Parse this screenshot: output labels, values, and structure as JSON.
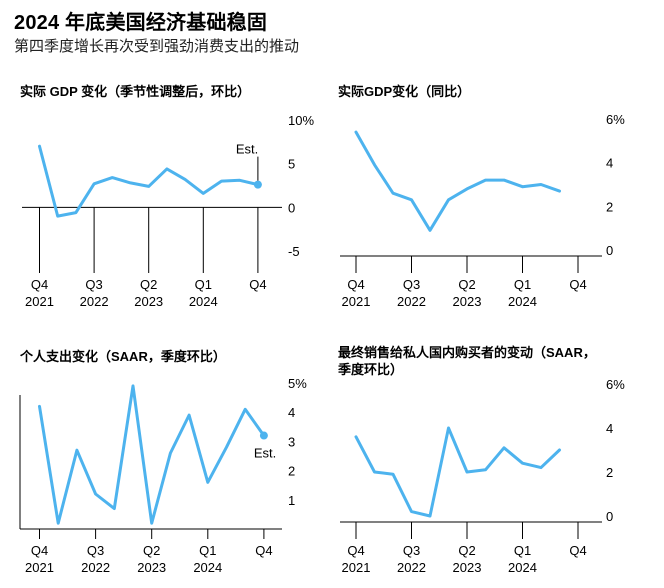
{
  "title": "2024 年底美国经济基础稳固",
  "subtitle": "第四季度增长再次受到强劲消费支出的推动",
  "colors": {
    "line": "#4db3ee",
    "axis": "#000000",
    "text": "#000000"
  },
  "chart_data": [
    {
      "type": "line",
      "title": "实际 GDP 变化（季节性调整后，环比）",
      "x": [
        "Q4 2021",
        "Q1 2022",
        "Q2 2022",
        "Q3 2022",
        "Q4 2022",
        "Q1 2023",
        "Q2 2023",
        "Q3 2023",
        "Q4 2023",
        "Q1 2024",
        "Q2 2024",
        "Q3 2024",
        "Q4 2024"
      ],
      "series": [
        {
          "name": "实际 GDP 变化",
          "values": [
            7.0,
            -1.0,
            -0.6,
            2.7,
            3.4,
            2.8,
            2.4,
            4.4,
            3.2,
            1.6,
            3.0,
            3.1,
            2.6
          ]
        }
      ],
      "ylim": [
        -5,
        10
      ],
      "yticks": [
        "10%",
        "5",
        "0",
        "-5"
      ],
      "ytick_values": [
        10,
        5,
        0,
        -5
      ],
      "xtick_top": [
        "Q4",
        "Q3",
        "Q2",
        "Q1",
        "Q4"
      ],
      "xtick_bottom": [
        "2021",
        "2022",
        "2023",
        "2024",
        ""
      ],
      "annotation": "Est."
    },
    {
      "type": "line",
      "title": "实际GDP变化（同比）",
      "x": [
        "Q4 2021",
        "Q1 2022",
        "Q2 2022",
        "Q3 2022",
        "Q4 2022",
        "Q1 2023",
        "Q2 2023",
        "Q3 2023",
        "Q4 2023",
        "Q1 2024",
        "Q2 2024",
        "Q3 2024"
      ],
      "series": [
        {
          "name": "实际GDP变化（同比）",
          "values": [
            5.4,
            3.9,
            2.6,
            2.3,
            0.9,
            2.3,
            2.8,
            3.2,
            3.2,
            2.9,
            3.0,
            2.7
          ]
        }
      ],
      "ylim": [
        0,
        6
      ],
      "yticks": [
        "6%",
        "4",
        "2",
        "0"
      ],
      "ytick_values": [
        6,
        4,
        2,
        0
      ],
      "xtick_top": [
        "Q4",
        "Q3",
        "Q2",
        "Q1",
        "Q4"
      ],
      "xtick_bottom": [
        "2021",
        "2022",
        "2023",
        "2024",
        ""
      ]
    },
    {
      "type": "line",
      "title": "个人支出变化（SAAR，季度环比）",
      "x": [
        "Q4 2021",
        "Q1 2022",
        "Q2 2022",
        "Q3 2022",
        "Q4 2022",
        "Q1 2023",
        "Q2 2023",
        "Q3 2023",
        "Q4 2023",
        "Q1 2024",
        "Q2 2024",
        "Q3 2024",
        "Q4 2024"
      ],
      "series": [
        {
          "name": "个人支出变化",
          "values": [
            4.2,
            0.2,
            2.7,
            1.2,
            0.7,
            4.9,
            0.2,
            2.6,
            3.9,
            1.6,
            2.8,
            4.1,
            3.2
          ]
        }
      ],
      "ylim": [
        0,
        5
      ],
      "yticks": [
        "5%",
        "4",
        "3",
        "2",
        "1"
      ],
      "ytick_values": [
        5,
        4,
        3,
        2,
        1
      ],
      "xtick_top": [
        "Q4",
        "Q3",
        "Q2",
        "Q1",
        "Q4"
      ],
      "xtick_bottom": [
        "2021",
        "2022",
        "2023",
        "2024",
        ""
      ],
      "annotation": "Est."
    },
    {
      "type": "line",
      "title": "最终销售给私人国内购买者的变动（SAAR，季度环比）",
      "title_lines": [
        "最终销售给私人国内购买者的变动（SAAR，",
        "季度环比）"
      ],
      "x": [
        "Q4 2021",
        "Q1 2022",
        "Q2 2022",
        "Q3 2022",
        "Q4 2022",
        "Q1 2023",
        "Q2 2023",
        "Q3 2023",
        "Q4 2023",
        "Q1 2024",
        "Q2 2024",
        "Q3 2024"
      ],
      "series": [
        {
          "name": "最终销售给私人国内购买者的变动",
          "values": [
            3.6,
            2.0,
            1.9,
            0.2,
            0.0,
            4.0,
            2.0,
            2.1,
            3.1,
            2.4,
            2.2,
            3.0
          ]
        }
      ],
      "ylim": [
        0,
        6
      ],
      "yticks": [
        "6%",
        "4",
        "2",
        "0"
      ],
      "ytick_values": [
        6,
        4,
        2,
        0
      ],
      "xtick_top": [
        "Q4",
        "Q3",
        "Q2",
        "Q1",
        "Q4"
      ],
      "xtick_bottom": [
        "2021",
        "2022",
        "2023",
        "2024",
        ""
      ]
    }
  ]
}
